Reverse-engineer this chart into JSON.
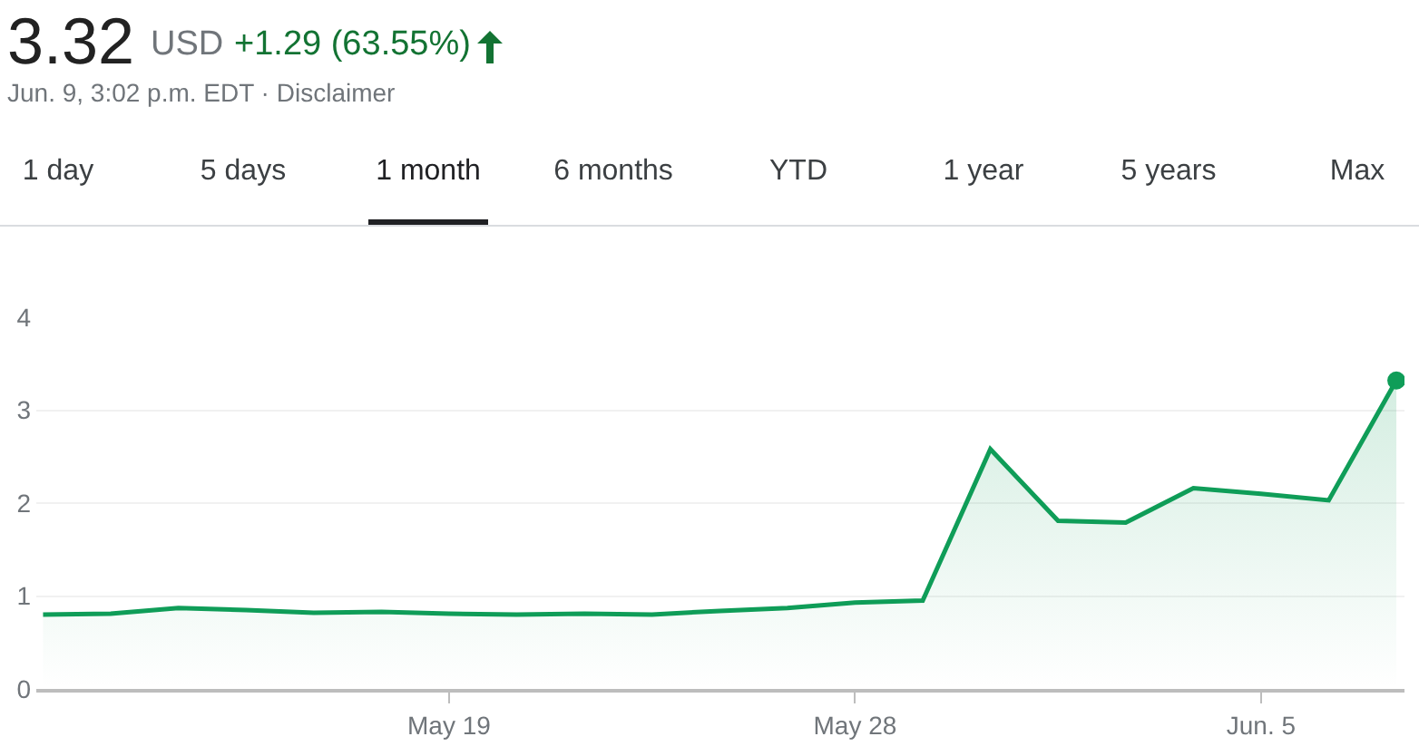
{
  "chart_data": {
    "type": "area",
    "title": "3.32",
    "annotations": [
      "USD",
      "+1.29 (63.55%)",
      "Jun. 9, 3:02 p.m. EDT · Disclaimer",
      "1 day",
      "5 days",
      "1 month",
      "6 months",
      "YTD",
      "1 year",
      "5 years",
      "Max"
    ],
    "categories": [
      null,
      null,
      null,
      null,
      null,
      null,
      "May 19",
      null,
      null,
      null,
      null,
      null,
      "May 28",
      null,
      null,
      null,
      null,
      null,
      "Jun. 5",
      null,
      null
    ],
    "series": [
      {
        "color": "#0f9d58",
        "values": [
          0.8,
          0.81,
          0.87,
          0.85,
          0.82,
          0.83,
          0.81,
          0.8,
          0.81,
          0.8,
          0.84,
          0.87,
          0.93,
          0.95,
          2.58,
          1.81,
          1.79,
          2.16,
          2.1,
          2.03,
          3.32
        ]
      }
    ],
    "ylim": [
      0,
      4
    ],
    "yticks": [
      0,
      1,
      2,
      3,
      4
    ],
    "grid": "y"
  }
}
